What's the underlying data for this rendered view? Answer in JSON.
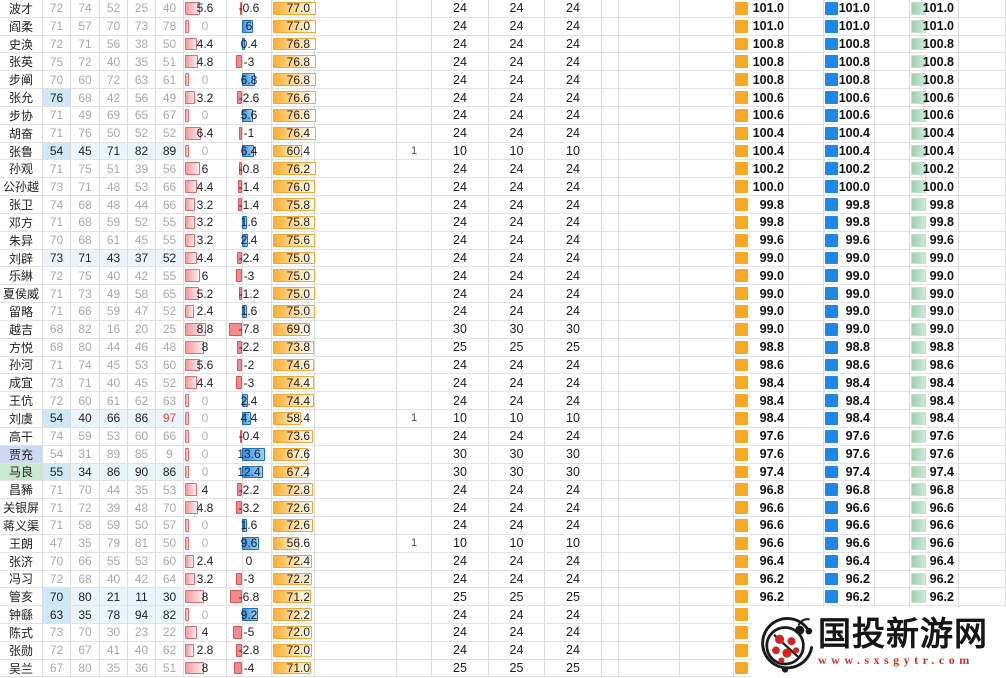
{
  "table": {
    "rows": [
      {
        "name": "波才",
        "name_bg": null,
        "stats": [
          72,
          74,
          52,
          25,
          40
        ],
        "stat_styles": "ggggg",
        "delta": 5.6,
        "diff": -0.6,
        "score": 77.0,
        "flag": "",
        "counts": [
          24,
          24,
          24
        ],
        "totals": 101.0
      },
      {
        "name": "阎柔",
        "name_bg": null,
        "stats": [
          71,
          57,
          70,
          73,
          78
        ],
        "stat_styles": "ggggg",
        "delta": 0,
        "diff": 6,
        "score": 77.0,
        "flag": "",
        "counts": [
          24,
          24,
          24
        ],
        "totals": 101.0
      },
      {
        "name": "史涣",
        "name_bg": null,
        "stats": [
          72,
          71,
          56,
          38,
          50
        ],
        "stat_styles": "ggggg",
        "delta": 4.4,
        "diff": 0.4,
        "score": 76.8,
        "flag": "",
        "counts": [
          24,
          24,
          24
        ],
        "totals": 100.8
      },
      {
        "name": "张英",
        "name_bg": null,
        "stats": [
          75,
          72,
          40,
          35,
          51
        ],
        "stat_styles": "ggggg",
        "delta": 4.8,
        "diff": -3,
        "score": 76.8,
        "flag": "",
        "counts": [
          24,
          24,
          24
        ],
        "totals": 100.8
      },
      {
        "name": "步阐",
        "name_bg": null,
        "stats": [
          70,
          60,
          72,
          63,
          61
        ],
        "stat_styles": "ggggg",
        "delta": 0,
        "diff": 6.8,
        "score": 76.8,
        "flag": "",
        "counts": [
          24,
          24,
          24
        ],
        "totals": 100.8
      },
      {
        "name": "张允",
        "name_bg": null,
        "stats": [
          76,
          68,
          42,
          56,
          49
        ],
        "stat_styles": "Bgggg",
        "delta": 3.2,
        "diff": -2.6,
        "score": 76.6,
        "flag": "",
        "counts": [
          24,
          24,
          24
        ],
        "totals": 100.6
      },
      {
        "name": "步协",
        "name_bg": null,
        "stats": [
          71,
          49,
          69,
          65,
          67
        ],
        "stat_styles": "ggggg",
        "delta": 0,
        "diff": 5.6,
        "score": 76.6,
        "flag": "",
        "counts": [
          24,
          24,
          24
        ],
        "totals": 100.6
      },
      {
        "name": "胡奋",
        "name_bg": null,
        "stats": [
          71,
          76,
          50,
          52,
          52
        ],
        "stat_styles": "ggggg",
        "delta": 6.4,
        "diff": -1,
        "score": 76.4,
        "flag": "",
        "counts": [
          24,
          24,
          24
        ],
        "totals": 100.4
      },
      {
        "name": "张鲁",
        "name_bg": null,
        "stats": [
          54,
          45,
          71,
          82,
          89
        ],
        "stat_styles": "Bbbbb",
        "delta": 0,
        "diff": 6.4,
        "score": 60.4,
        "flag": "1",
        "counts": [
          10,
          10,
          10
        ],
        "totals": 100.4
      },
      {
        "name": "孙观",
        "name_bg": null,
        "stats": [
          71,
          75,
          51,
          39,
          56
        ],
        "stat_styles": "ggggg",
        "delta": 6,
        "diff": -0.8,
        "score": 76.2,
        "flag": "",
        "counts": [
          24,
          24,
          24
        ],
        "totals": 100.2
      },
      {
        "name": "公孙越",
        "name_bg": null,
        "stats": [
          73,
          71,
          48,
          53,
          66
        ],
        "stat_styles": "ggggg",
        "delta": 4.4,
        "diff": -1.4,
        "score": 76.0,
        "flag": "",
        "counts": [
          24,
          24,
          24
        ],
        "totals": 100.0
      },
      {
        "name": "张卫",
        "name_bg": null,
        "stats": [
          74,
          68,
          48,
          44,
          66
        ],
        "stat_styles": "ggggg",
        "delta": 3.2,
        "diff": -1.4,
        "score": 75.8,
        "flag": "",
        "counts": [
          24,
          24,
          24
        ],
        "totals": 99.8
      },
      {
        "name": "邓方",
        "name_bg": null,
        "stats": [
          71,
          68,
          59,
          52,
          55
        ],
        "stat_styles": "ggggg",
        "delta": 3.2,
        "diff": 1.6,
        "score": 75.8,
        "flag": "",
        "counts": [
          24,
          24,
          24
        ],
        "totals": 99.8
      },
      {
        "name": "朱异",
        "name_bg": null,
        "stats": [
          70,
          68,
          61,
          45,
          55
        ],
        "stat_styles": "ggggg",
        "delta": 3.2,
        "diff": 2.4,
        "score": 75.6,
        "flag": "",
        "counts": [
          24,
          24,
          24
        ],
        "totals": 99.6
      },
      {
        "name": "刘辟",
        "name_bg": null,
        "stats": [
          73,
          71,
          43,
          37,
          52
        ],
        "stat_styles": "bbbbb",
        "delta": 4.4,
        "diff": -2.4,
        "score": 75.0,
        "flag": "",
        "counts": [
          24,
          24,
          24
        ],
        "totals": 99.0
      },
      {
        "name": "乐綝",
        "name_bg": null,
        "stats": [
          72,
          75,
          40,
          42,
          55
        ],
        "stat_styles": "ggggg",
        "delta": 6,
        "diff": -3,
        "score": 75.0,
        "flag": "",
        "counts": [
          24,
          24,
          24
        ],
        "totals": 99.0
      },
      {
        "name": "夏侯威",
        "name_bg": null,
        "stats": [
          71,
          73,
          49,
          58,
          65
        ],
        "stat_styles": "ggggg",
        "delta": 5.2,
        "diff": -1.2,
        "score": 75.0,
        "flag": "",
        "counts": [
          24,
          24,
          24
        ],
        "totals": 99.0
      },
      {
        "name": "留略",
        "name_bg": null,
        "stats": [
          71,
          66,
          59,
          47,
          52
        ],
        "stat_styles": "ggggg",
        "delta": 2.4,
        "diff": 1.6,
        "score": 75.0,
        "flag": "",
        "counts": [
          24,
          24,
          24
        ],
        "totals": 99.0
      },
      {
        "name": "越吉",
        "name_bg": null,
        "stats": [
          68,
          82,
          16,
          20,
          25
        ],
        "stat_styles": "ggggg",
        "delta": 8.8,
        "diff": -7.8,
        "score": 69.0,
        "flag": "",
        "counts": [
          30,
          30,
          30
        ],
        "totals": 99.0
      },
      {
        "name": "方悦",
        "name_bg": null,
        "stats": [
          68,
          80,
          44,
          46,
          48
        ],
        "stat_styles": "ggggg",
        "delta": 8,
        "diff": -2.2,
        "score": 73.8,
        "flag": "",
        "counts": [
          25,
          25,
          25
        ],
        "totals": 98.8
      },
      {
        "name": "孙河",
        "name_bg": null,
        "stats": [
          71,
          74,
          45,
          53,
          60
        ],
        "stat_styles": "ggggg",
        "delta": 5.6,
        "diff": -2,
        "score": 74.6,
        "flag": "",
        "counts": [
          24,
          24,
          24
        ],
        "totals": 98.6
      },
      {
        "name": "成宜",
        "name_bg": null,
        "stats": [
          73,
          71,
          40,
          45,
          52
        ],
        "stat_styles": "ggggg",
        "delta": 4.4,
        "diff": -3,
        "score": 74.4,
        "flag": "",
        "counts": [
          24,
          24,
          24
        ],
        "totals": 98.4
      },
      {
        "name": "王伉",
        "name_bg": null,
        "stats": [
          72,
          60,
          61,
          62,
          63
        ],
        "stat_styles": "ggggg",
        "delta": 0,
        "diff": 2.4,
        "score": 74.4,
        "flag": "",
        "counts": [
          24,
          24,
          24
        ],
        "totals": 98.4
      },
      {
        "name": "刘虞",
        "name_bg": null,
        "stats": [
          54,
          40,
          66,
          86,
          97
        ],
        "stat_styles": "Bbbbr",
        "delta": 0,
        "diff": 4.4,
        "score": 58.4,
        "flag": "1",
        "counts": [
          10,
          10,
          10
        ],
        "totals": 98.4
      },
      {
        "name": "高干",
        "name_bg": null,
        "stats": [
          74,
          59,
          53,
          60,
          66
        ],
        "stat_styles": "ggggg",
        "delta": 0,
        "diff": -0.4,
        "score": 73.6,
        "flag": "",
        "counts": [
          24,
          24,
          24
        ],
        "totals": 97.6
      },
      {
        "name": "贾充",
        "name_bg": "blue",
        "stats": [
          54,
          31,
          89,
          85,
          9
        ],
        "stat_styles": "ggggg",
        "delta": 0,
        "diff": 13.6,
        "score": 67.6,
        "flag": "",
        "counts": [
          30,
          30,
          30
        ],
        "totals": 97.6
      },
      {
        "name": "马良",
        "name_bg": "green",
        "stats": [
          55,
          34,
          86,
          90,
          86
        ],
        "stat_styles": "Bbbbb",
        "delta": 0,
        "diff": 12.4,
        "score": 67.4,
        "flag": "",
        "counts": [
          30,
          30,
          30
        ],
        "totals": 97.4
      },
      {
        "name": "昌豨",
        "name_bg": null,
        "stats": [
          71,
          70,
          44,
          35,
          53
        ],
        "stat_styles": "ggggg",
        "delta": 4,
        "diff": -2.2,
        "score": 72.8,
        "flag": "",
        "counts": [
          24,
          24,
          24
        ],
        "totals": 96.8
      },
      {
        "name": "关银屏",
        "name_bg": null,
        "stats": [
          71,
          72,
          39,
          48,
          70
        ],
        "stat_styles": "ggggg",
        "delta": 4.8,
        "diff": -3.2,
        "score": 72.6,
        "flag": "",
        "counts": [
          24,
          24,
          24
        ],
        "totals": 96.6
      },
      {
        "name": "蒋义渠",
        "name_bg": null,
        "stats": [
          71,
          58,
          59,
          50,
          57
        ],
        "stat_styles": "ggggg",
        "delta": 0,
        "diff": 1.6,
        "score": 72.6,
        "flag": "",
        "counts": [
          24,
          24,
          24
        ],
        "totals": 96.6
      },
      {
        "name": "王朗",
        "name_bg": null,
        "stats": [
          47,
          35,
          79,
          81,
          50
        ],
        "stat_styles": "ggggg",
        "delta": 0,
        "diff": 9.6,
        "score": 56.6,
        "flag": "1",
        "counts": [
          10,
          10,
          10
        ],
        "totals": 96.6
      },
      {
        "name": "张济",
        "name_bg": null,
        "stats": [
          70,
          66,
          55,
          53,
          60
        ],
        "stat_styles": "ggggg",
        "delta": 2.4,
        "diff": 0,
        "score": 72.4,
        "flag": "",
        "counts": [
          24,
          24,
          24
        ],
        "totals": 96.4
      },
      {
        "name": "冯习",
        "name_bg": null,
        "stats": [
          72,
          68,
          40,
          42,
          64
        ],
        "stat_styles": "ggggg",
        "delta": 3.2,
        "diff": -3,
        "score": 72.2,
        "flag": "",
        "counts": [
          24,
          24,
          24
        ],
        "totals": 96.2
      },
      {
        "name": "管亥",
        "name_bg": null,
        "stats": [
          70,
          80,
          21,
          11,
          30
        ],
        "stat_styles": "Bbbbb",
        "delta": 8,
        "diff": -6.8,
        "score": 71.2,
        "flag": "",
        "counts": [
          25,
          25,
          25
        ],
        "totals": 96.2
      },
      {
        "name": "钟繇",
        "name_bg": null,
        "stats": [
          63,
          35,
          78,
          94,
          82
        ],
        "stat_styles": "Bbbbb",
        "delta": 0,
        "diff": 9.2,
        "score": 72.2,
        "flag": "",
        "counts": [
          24,
          24,
          24
        ],
        "totals": null
      },
      {
        "name": "陈式",
        "name_bg": null,
        "stats": [
          73,
          70,
          30,
          23,
          22
        ],
        "stat_styles": "ggggg",
        "delta": 4,
        "diff": -5,
        "score": 72.0,
        "flag": "",
        "counts": [
          24,
          24,
          24
        ],
        "totals": null
      },
      {
        "name": "张勋",
        "name_bg": null,
        "stats": [
          72,
          67,
          41,
          40,
          62
        ],
        "stat_styles": "ggggg",
        "delta": 2.8,
        "diff": -2.8,
        "score": 72.0,
        "flag": "",
        "counts": [
          24,
          24,
          24
        ],
        "totals": null
      },
      {
        "name": "吴兰",
        "name_bg": null,
        "stats": [
          67,
          80,
          35,
          36,
          51
        ],
        "stat_styles": "ggggg",
        "delta": 8,
        "diff": -4,
        "score": 71.0,
        "flag": "",
        "counts": [
          25,
          25,
          25
        ],
        "totals": null
      }
    ]
  },
  "colors": {
    "highlight_strong": "#cde8f6",
    "highlight_light": "#eaf4fb",
    "red_text": "#e0483e",
    "name_blue": "#ccd9f2",
    "name_green": "#c8e7cf",
    "bar_red": "#f48a8d",
    "bar_red_border": "#e05252",
    "bar_blue": "#3b92e8",
    "bar_blue_border": "#1f6fc0",
    "bar_orange": "#f9a822",
    "score_blue": "#1e88e8",
    "score_green": "#a8d5b5",
    "grid": "#dcdcdc",
    "grey_text": "#a9a9a9"
  },
  "watermark": {
    "title": "国投新游网",
    "url": "www.sxsgytr.com"
  }
}
